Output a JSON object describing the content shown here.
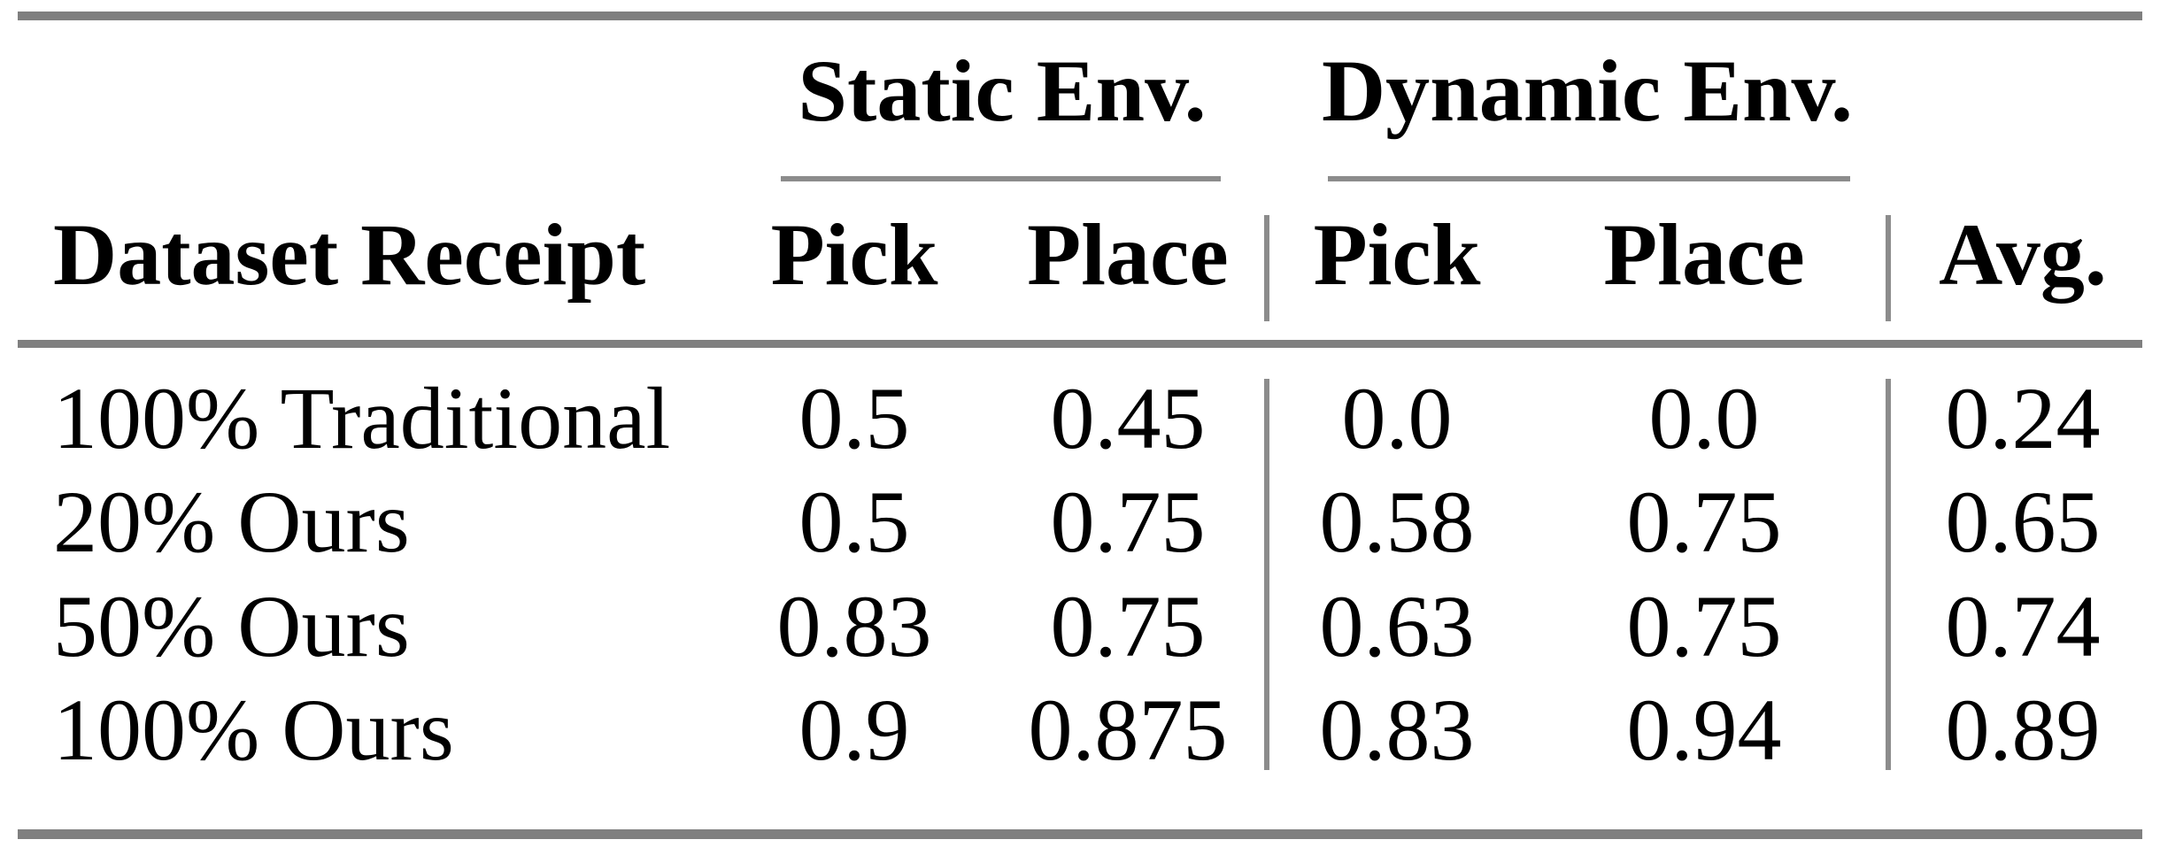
{
  "colors": {
    "background": "#ffffff",
    "text": "#000000",
    "rule_thick": "#7f7f7f",
    "rule_thin": "#8c8c8c"
  },
  "table": {
    "group_headers": [
      {
        "label": "Static Env."
      },
      {
        "label": "Dynamic Env."
      }
    ],
    "columns": [
      {
        "label": "Dataset Receipt"
      },
      {
        "label": "Pick"
      },
      {
        "label": "Place"
      },
      {
        "label": "Pick"
      },
      {
        "label": "Place"
      },
      {
        "label": "Avg."
      }
    ],
    "rows": [
      {
        "label": "100% Traditional",
        "values": [
          "0.5",
          "0.45",
          "0.0",
          "0.0",
          "0.24"
        ]
      },
      {
        "label": "20% Ours",
        "values": [
          "0.5",
          "0.75",
          "0.58",
          "0.75",
          "0.65"
        ]
      },
      {
        "label": "50% Ours",
        "values": [
          "0.83",
          "0.75",
          "0.63",
          "0.75",
          "0.74"
        ]
      },
      {
        "label": "100% Ours",
        "values": [
          "0.9",
          "0.875",
          "0.83",
          "0.94",
          "0.89"
        ]
      }
    ]
  },
  "chart_data": {
    "type": "table",
    "column_groups": [
      {
        "label": "Static Env.",
        "span": [
          "Pick",
          "Place"
        ]
      },
      {
        "label": "Dynamic Env.",
        "span": [
          "Pick",
          "Place"
        ]
      }
    ],
    "columns": [
      "Dataset Receipt",
      "Static Pick",
      "Static Place",
      "Dynamic Pick",
      "Dynamic Place",
      "Avg."
    ],
    "rows": [
      [
        "100% Traditional",
        0.5,
        0.45,
        0.0,
        0.0,
        0.24
      ],
      [
        "20% Ours",
        0.5,
        0.75,
        0.58,
        0.75,
        0.65
      ],
      [
        "50% Ours",
        0.83,
        0.75,
        0.63,
        0.75,
        0.74
      ],
      [
        "100% Ours",
        0.9,
        0.875,
        0.83,
        0.94,
        0.89
      ]
    ]
  }
}
